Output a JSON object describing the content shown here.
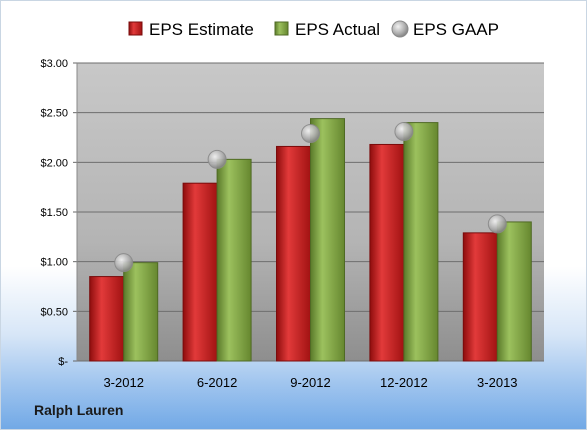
{
  "company": "Ralph Lauren",
  "chart_data": {
    "type": "bar",
    "categories": [
      "3-2012",
      "6-2012",
      "9-2012",
      "12-2012",
      "3-2013"
    ],
    "series": [
      {
        "name": "EPS Estimate",
        "values": [
          0.85,
          1.79,
          2.16,
          2.18,
          1.29
        ],
        "color": "#c81a1a",
        "kind": "bar"
      },
      {
        "name": "EPS Actual",
        "values": [
          0.99,
          2.03,
          2.44,
          2.4,
          1.4
        ],
        "color": "#7fa046",
        "kind": "bar"
      },
      {
        "name": "EPS GAAP",
        "values": [
          0.99,
          2.03,
          2.29,
          2.31,
          1.38
        ],
        "color": "#a8a8a8",
        "kind": "marker"
      }
    ],
    "yticks": [
      0,
      0.5,
      1.0,
      1.5,
      2.0,
      2.5,
      3.0
    ],
    "ytick_labels": [
      "$-",
      "$0.50",
      "$1.00",
      "$1.50",
      "$2.00",
      "$2.50",
      "$3.00"
    ],
    "ylim": [
      0,
      3.0
    ],
    "grid": true,
    "legend_position": "top"
  }
}
